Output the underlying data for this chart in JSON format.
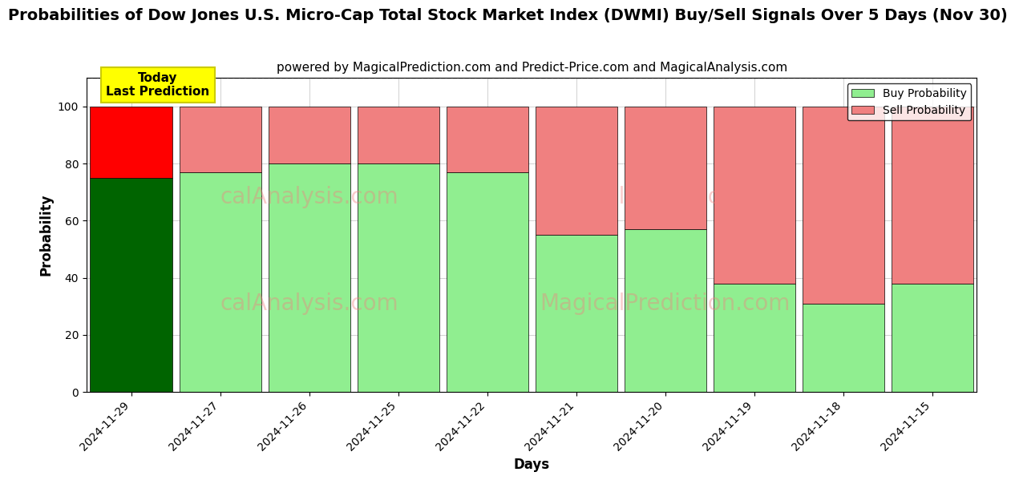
{
  "title": "Probabilities of Dow Jones U.S. Micro-Cap Total Stock Market Index (DWMI) Buy/Sell Signals Over 5 Days (Nov 30)",
  "subtitle": "powered by MagicalPrediction.com and Predict-Price.com and MagicalAnalysis.com",
  "xlabel": "Days",
  "ylabel": "Probability",
  "categories": [
    "2024-11-29",
    "2024-11-27",
    "2024-11-26",
    "2024-11-25",
    "2024-11-22",
    "2024-11-21",
    "2024-11-20",
    "2024-11-19",
    "2024-11-18",
    "2024-11-15"
  ],
  "buy_values": [
    75,
    77,
    80,
    80,
    77,
    55,
    57,
    38,
    31,
    38
  ],
  "sell_values": [
    25,
    23,
    20,
    20,
    23,
    45,
    43,
    62,
    69,
    62
  ],
  "today_index": 0,
  "buy_color_today": "#006400",
  "sell_color_today": "#FF0000",
  "buy_color_normal": "#90EE90",
  "sell_color_normal": "#F08080",
  "today_annotation_text": "Today\nLast Prediction",
  "today_annotation_facecolor": "#FFFF00",
  "today_annotation_edgecolor": "#CCCC00",
  "legend_buy_label": "Buy Probability",
  "legend_sell_label": "Sell Probability",
  "ylim": [
    0,
    110
  ],
  "yticks": [
    0,
    20,
    40,
    60,
    80,
    100
  ],
  "watermark_row1": [
    "calAnalysis.com",
    "MagicalPrediction.com"
  ],
  "watermark_row2": [
    "calAnalysis.com",
    "MagicalPrediction.com"
  ],
  "watermark_color": "#F08080",
  "watermark_alpha": 0.4,
  "background_color": "#ffffff",
  "grid_color": "gray",
  "dashed_line_y": 110,
  "bar_width": 0.92,
  "title_fontsize": 14,
  "subtitle_fontsize": 11,
  "axis_label_fontsize": 12,
  "tick_fontsize": 10,
  "legend_fontsize": 10,
  "annotation_fontsize": 11
}
